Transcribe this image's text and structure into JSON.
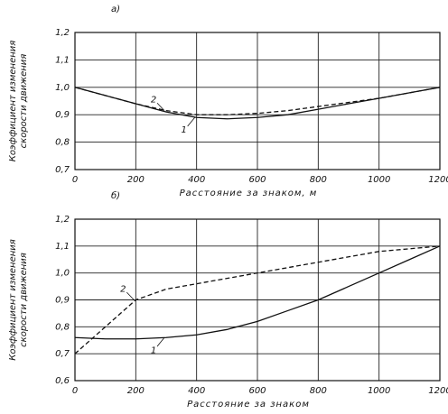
{
  "chart_data": [
    {
      "type": "line",
      "panel_label": "а)",
      "ylabel": [
        "Коэффициент изменения",
        "скорости движения"
      ],
      "xlabel": "Расстояние за знаком, м",
      "x": [
        0,
        100,
        200,
        300,
        400,
        500,
        600,
        700,
        800,
        900,
        1000,
        1100,
        1200
      ],
      "series": [
        {
          "name": "1",
          "color": "#111",
          "dashed": false,
          "values": [
            1.0,
            0.97,
            0.94,
            0.91,
            0.89,
            0.885,
            0.89,
            0.9,
            0.92,
            0.94,
            0.96,
            0.98,
            1.0
          ]
        },
        {
          "name": "2",
          "color": "#111",
          "dashed": true,
          "values": [
            1.0,
            0.97,
            0.94,
            0.915,
            0.9,
            0.9,
            0.905,
            0.915,
            0.93,
            0.945,
            0.96,
            0.98,
            1.0
          ]
        }
      ],
      "xlim": [
        0,
        1200
      ],
      "xticks": [
        0,
        200,
        400,
        600,
        800,
        1000,
        1200
      ],
      "ylim": [
        0.7,
        1.2
      ],
      "yticks": [
        {
          "value": 0.7,
          "label": "0,7"
        },
        {
          "value": 0.8,
          "label": "0,8"
        },
        {
          "value": 0.9,
          "label": "0,9"
        },
        {
          "value": 1.0,
          "label": "1,0"
        },
        {
          "value": 1.1,
          "label": "1,1"
        },
        {
          "value": 1.2,
          "label": "1,2"
        }
      ],
      "grid": true
    },
    {
      "type": "line",
      "panel_label": "б)",
      "ylabel": [
        "Коэффициент изменения",
        "скорости движения"
      ],
      "xlabel": "Расстояние за знаком",
      "x": [
        0,
        100,
        200,
        300,
        400,
        500,
        600,
        700,
        800,
        900,
        1000,
        1100,
        1200
      ],
      "series": [
        {
          "name": "1",
          "color": "#111",
          "dashed": false,
          "values": [
            0.76,
            0.755,
            0.755,
            0.76,
            0.77,
            0.79,
            0.82,
            0.86,
            0.9,
            0.95,
            1.0,
            1.05,
            1.1
          ]
        },
        {
          "name": "2",
          "color": "#111",
          "dashed": true,
          "values": [
            0.7,
            0.8,
            0.9,
            0.94,
            0.96,
            0.98,
            1.0,
            1.02,
            1.04,
            1.06,
            1.08,
            1.09,
            1.1
          ]
        }
      ],
      "xlim": [
        0,
        1200
      ],
      "xticks": [
        0,
        200,
        400,
        600,
        800,
        1000,
        1200
      ],
      "ylim": [
        0.6,
        1.2
      ],
      "yticks": [
        {
          "value": 0.6,
          "label": "0,6"
        },
        {
          "value": 0.7,
          "label": "0,7"
        },
        {
          "value": 0.8,
          "label": "0,8"
        },
        {
          "value": 0.9,
          "label": "0,9"
        },
        {
          "value": 1.0,
          "label": "1,0"
        },
        {
          "value": 1.1,
          "label": "1,1"
        },
        {
          "value": 1.2,
          "label": "1,2"
        }
      ],
      "grid": true
    }
  ]
}
